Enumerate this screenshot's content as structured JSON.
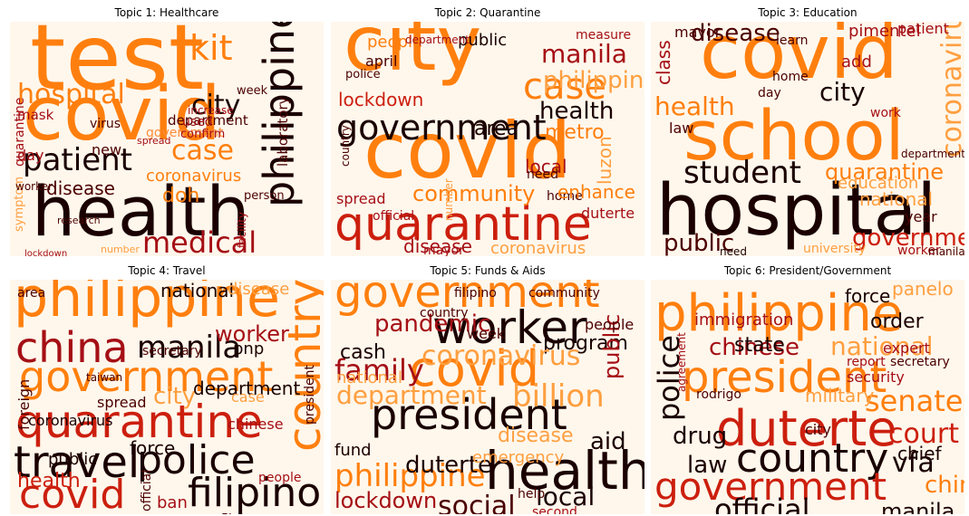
{
  "panels": [
    {
      "title": "Topic 1: Healthcare",
      "words": [
        {
          "text": "test",
          "color": "#ff7f0e"
        },
        {
          "text": "covid",
          "color": "#ff7f0e"
        },
        {
          "text": "health",
          "color": "#1a0000"
        },
        {
          "text": "hospital",
          "color": "#ff7f0e"
        },
        {
          "text": "patient",
          "color": "#1a0000"
        },
        {
          "text": "philippine",
          "color": "#1a0000"
        },
        {
          "text": "medical",
          "color": "#a50f15"
        },
        {
          "text": "case",
          "color": "#ff7f0e"
        },
        {
          "text": "city",
          "color": "#1a0000"
        },
        {
          "text": "kit",
          "color": "#ff7f0e"
        },
        {
          "text": "department",
          "color": "#4a0000"
        },
        {
          "text": "coronavirus",
          "color": "#ff7f0e"
        },
        {
          "text": "disease",
          "color": "#4a0000"
        },
        {
          "text": "laboratory",
          "color": "#4a0000"
        },
        {
          "text": "government",
          "color": "#fd8d3c"
        },
        {
          "text": "virus",
          "color": "#4a0000"
        },
        {
          "text": "symptom",
          "color": "#ff9f40"
        },
        {
          "text": "center",
          "color": "#ff9f40"
        },
        {
          "text": "confirm",
          "color": "#a50f15"
        },
        {
          "text": "spread",
          "color": "#a50f15"
        },
        {
          "text": "worker",
          "color": "#4a0000"
        },
        {
          "text": "mask",
          "color": "#a50f15"
        },
        {
          "text": "quarantine",
          "color": "#a50f15"
        },
        {
          "text": "doh",
          "color": "#ff7f0e"
        },
        {
          "text": "facility",
          "color": "#a50f15"
        },
        {
          "text": "person",
          "color": "#4a0000"
        },
        {
          "text": "day",
          "color": "#a50f15"
        },
        {
          "text": "new",
          "color": "#4a0000"
        },
        {
          "text": "week",
          "color": "#4a0000"
        },
        {
          "text": "used",
          "color": "#a50f15"
        },
        {
          "text": "increase",
          "color": "#a50f15"
        },
        {
          "text": "lockdown",
          "color": "#a50f15"
        },
        {
          "text": "number",
          "color": "#ff9f40"
        },
        {
          "text": "research",
          "color": "#4a0000"
        }
      ]
    },
    {
      "title": "Topic 2: Quarantine",
      "words": [
        {
          "text": "city",
          "color": "#ff7f0e"
        },
        {
          "text": "covid",
          "color": "#ff7f0e"
        },
        {
          "text": "quarantine",
          "color": "#cc1f0e"
        },
        {
          "text": "government",
          "color": "#1a0000"
        },
        {
          "text": "case",
          "color": "#ff7f0e"
        },
        {
          "text": "manila",
          "color": "#a50f15"
        },
        {
          "text": "philippine",
          "color": "#ff9f40"
        },
        {
          "text": "health",
          "color": "#1a0000"
        },
        {
          "text": "lockdown",
          "color": "#cc1f0e"
        },
        {
          "text": "community",
          "color": "#ff7f0e"
        },
        {
          "text": "coronavirus",
          "color": "#ff9f40"
        },
        {
          "text": "disease",
          "color": "#a50f15"
        },
        {
          "text": "people",
          "color": "#ff7f0e"
        },
        {
          "text": "public",
          "color": "#1a0000"
        },
        {
          "text": "metro",
          "color": "#ff7f0e"
        },
        {
          "text": "area",
          "color": "#1a0000"
        },
        {
          "text": "local",
          "color": "#a50f15"
        },
        {
          "text": "spread",
          "color": "#a50f15"
        },
        {
          "text": "home",
          "color": "#4a0000"
        },
        {
          "text": "enhance",
          "color": "#ff7f0e"
        },
        {
          "text": "duterte",
          "color": "#a50f15"
        },
        {
          "text": "mayor",
          "color": "#a50f15"
        },
        {
          "text": "april",
          "color": "#4a0000"
        },
        {
          "text": "luzon",
          "color": "#ff9f40"
        },
        {
          "text": "country",
          "color": "#4a0000"
        },
        {
          "text": "official",
          "color": "#a50f15"
        },
        {
          "text": "police",
          "color": "#4a0000"
        },
        {
          "text": "measure",
          "color": "#a50f15"
        },
        {
          "text": "department",
          "color": "#a50f15"
        },
        {
          "text": "need",
          "color": "#4a0000"
        },
        {
          "text": "number",
          "color": "#ff9f40"
        }
      ]
    },
    {
      "title": "Topic 3: Education",
      "words": [
        {
          "text": "covid",
          "color": "#ff7f0e"
        },
        {
          "text": "school",
          "color": "#ff7f0e"
        },
        {
          "text": "hospital",
          "color": "#1a0000"
        },
        {
          "text": "student",
          "color": "#1a0000"
        },
        {
          "text": "health",
          "color": "#ff7f0e"
        },
        {
          "text": "city",
          "color": "#1a0000"
        },
        {
          "text": "disease",
          "color": "#4a0000"
        },
        {
          "text": "quarantine",
          "color": "#ff7f0e"
        },
        {
          "text": "government",
          "color": "#cc1f0e"
        },
        {
          "text": "public",
          "color": "#4a0000"
        },
        {
          "text": "coronavirus",
          "color": "#ff9f40"
        },
        {
          "text": "education",
          "color": "#ff9f40"
        },
        {
          "text": "class",
          "color": "#a50f15"
        },
        {
          "text": "need",
          "color": "#1a0000"
        },
        {
          "text": "department",
          "color": "#4a0000"
        },
        {
          "text": "mayor",
          "color": "#4a0000"
        },
        {
          "text": "learn",
          "color": "#4a0000"
        },
        {
          "text": "pimentel",
          "color": "#a50f15"
        },
        {
          "text": "patient",
          "color": "#a50f15"
        },
        {
          "text": "national",
          "color": "#ff9f40"
        },
        {
          "text": "university",
          "color": "#ff9f40"
        },
        {
          "text": "worker",
          "color": "#a50f15"
        },
        {
          "text": "manila",
          "color": "#4a0000"
        },
        {
          "text": "home",
          "color": "#4a0000"
        },
        {
          "text": "law",
          "color": "#4a0000"
        },
        {
          "text": "add",
          "color": "#a50f15"
        },
        {
          "text": "year",
          "color": "#4a0000"
        },
        {
          "text": "day",
          "color": "#4a0000"
        },
        {
          "text": "work",
          "color": "#a50f15"
        }
      ]
    },
    {
      "title": "Topic 4: Travel",
      "words": [
        {
          "text": "philippine",
          "color": "#ff7f0e"
        },
        {
          "text": "china",
          "color": "#a50f15"
        },
        {
          "text": "manila",
          "color": "#1a0000"
        },
        {
          "text": "government",
          "color": "#ff7f0e"
        },
        {
          "text": "quarantine",
          "color": "#cc1f0e"
        },
        {
          "text": "travel",
          "color": "#1a0000"
        },
        {
          "text": "police",
          "color": "#1a0000"
        },
        {
          "text": "filipino",
          "color": "#1a0000"
        },
        {
          "text": "covid",
          "color": "#cc1f0e"
        },
        {
          "text": "health",
          "color": "#cc1f0e"
        },
        {
          "text": "country",
          "color": "#ff7f0e"
        },
        {
          "text": "city",
          "color": "#ff9f40"
        },
        {
          "text": "department",
          "color": "#1a0000"
        },
        {
          "text": "coronavirus",
          "color": "#1a0000"
        },
        {
          "text": "national",
          "color": "#1a0000"
        },
        {
          "text": "disease",
          "color": "#ff9f40"
        },
        {
          "text": "worker",
          "color": "#a50f15"
        },
        {
          "text": "pnp",
          "color": "#1a0000"
        },
        {
          "text": "ban",
          "color": "#a50f15"
        },
        {
          "text": "force",
          "color": "#1a0000"
        },
        {
          "text": "public",
          "color": "#1a0000"
        },
        {
          "text": "case",
          "color": "#ff9f40"
        },
        {
          "text": "spread",
          "color": "#4a0000"
        },
        {
          "text": "secretary",
          "color": "#4a0000"
        },
        {
          "text": "foreign",
          "color": "#4a0000"
        },
        {
          "text": "chinese",
          "color": "#a50f15"
        },
        {
          "text": "president",
          "color": "#4a0000"
        },
        {
          "text": "people",
          "color": "#a50f15"
        },
        {
          "text": "official",
          "color": "#4a0000"
        },
        {
          "text": "flight",
          "color": "#4a0000"
        },
        {
          "text": "taiwan",
          "color": "#4a0000"
        },
        {
          "text": "area",
          "color": "#4a0000"
        }
      ]
    },
    {
      "title": "Topic 5: Funds & Aids",
      "words": [
        {
          "text": "government",
          "color": "#ff7f0e"
        },
        {
          "text": "worker",
          "color": "#1a0000"
        },
        {
          "text": "covid",
          "color": "#ff7f0e"
        },
        {
          "text": "president",
          "color": "#1a0000"
        },
        {
          "text": "health",
          "color": "#1a0000"
        },
        {
          "text": "family",
          "color": "#a50f15"
        },
        {
          "text": "philippine",
          "color": "#ff7f0e"
        },
        {
          "text": "program",
          "color": "#1a0000"
        },
        {
          "text": "cash",
          "color": "#1a0000"
        },
        {
          "text": "coronavirus",
          "color": "#ff9f40"
        },
        {
          "text": "department",
          "color": "#ff9f40"
        },
        {
          "text": "duterte",
          "color": "#1a0000"
        },
        {
          "text": "aid",
          "color": "#1a0000"
        },
        {
          "text": "lockdown",
          "color": "#a50f15"
        },
        {
          "text": "local",
          "color": "#1a0000"
        },
        {
          "text": "pandemic",
          "color": "#a50f15"
        },
        {
          "text": "social",
          "color": "#4a0000"
        },
        {
          "text": "fund",
          "color": "#1a0000"
        },
        {
          "text": "public",
          "color": "#a50f15"
        },
        {
          "text": "billion",
          "color": "#ff9f40"
        },
        {
          "text": "disease",
          "color": "#ff9f40"
        },
        {
          "text": "national",
          "color": "#ff9f40"
        },
        {
          "text": "emergency",
          "color": "#ff9f40"
        },
        {
          "text": "help",
          "color": "#4a0000"
        },
        {
          "text": "people",
          "color": "#4a0000"
        },
        {
          "text": "second",
          "color": "#a50f15"
        },
        {
          "text": "filipino",
          "color": "#4a0000"
        },
        {
          "text": "community",
          "color": "#4a0000"
        },
        {
          "text": "country",
          "color": "#4a0000"
        },
        {
          "text": "week",
          "color": "#4a0000"
        }
      ]
    },
    {
      "title": "Topic 6: President/Government",
      "words": [
        {
          "text": "philippine",
          "color": "#ff7f0e"
        },
        {
          "text": "president",
          "color": "#ff7f0e"
        },
        {
          "text": "duterte",
          "color": "#cc1f0e"
        },
        {
          "text": "country",
          "color": "#1a0000"
        },
        {
          "text": "government",
          "color": "#cc1f0e"
        },
        {
          "text": "chinese",
          "color": "#a50f15"
        },
        {
          "text": "national",
          "color": "#ff9f40"
        },
        {
          "text": "senate",
          "color": "#ff7f0e"
        },
        {
          "text": "court",
          "color": "#cc1f0e"
        },
        {
          "text": "official",
          "color": "#1a0000"
        },
        {
          "text": "manila",
          "color": "#1a0000"
        },
        {
          "text": "police",
          "color": "#1a0000"
        },
        {
          "text": "drug",
          "color": "#1a0000"
        },
        {
          "text": "law",
          "color": "#1a0000"
        },
        {
          "text": "vfa",
          "color": "#1a0000"
        },
        {
          "text": "china",
          "color": "#ff7f0e"
        },
        {
          "text": "force",
          "color": "#1a0000"
        },
        {
          "text": "panelo",
          "color": "#ff9f40"
        },
        {
          "text": "state",
          "color": "#1a0000"
        },
        {
          "text": "order",
          "color": "#1a0000"
        },
        {
          "text": "military",
          "color": "#ff9f40"
        },
        {
          "text": "chief",
          "color": "#1a0000"
        },
        {
          "text": "immigration",
          "color": "#a50f15"
        },
        {
          "text": "city",
          "color": "#4a0000"
        },
        {
          "text": "security",
          "color": "#a50f15"
        },
        {
          "text": "expert",
          "color": "#a50f15"
        },
        {
          "text": "secretary",
          "color": "#4a0000"
        },
        {
          "text": "report",
          "color": "#a50f15"
        },
        {
          "text": "agreement",
          "color": "#a50f15"
        },
        {
          "text": "rodrigo",
          "color": "#4a0000"
        }
      ]
    }
  ]
}
